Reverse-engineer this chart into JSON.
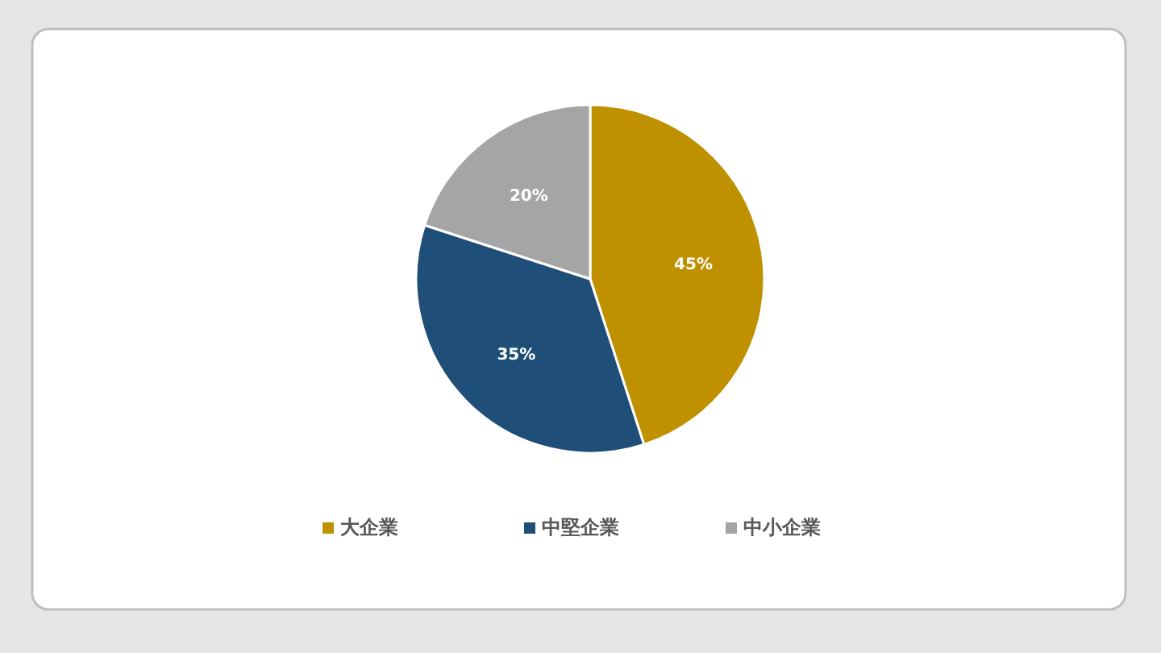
{
  "chart_data": {
    "type": "pie",
    "categories": [
      "大企業",
      "中堅企業",
      "中小企業"
    ],
    "values": [
      45,
      35,
      20
    ],
    "colors": [
      "#bf9000",
      "#1f4e79",
      "#a5a5a5"
    ],
    "value_labels": [
      "45%",
      "35%",
      "20%"
    ],
    "legend": "bottom"
  }
}
